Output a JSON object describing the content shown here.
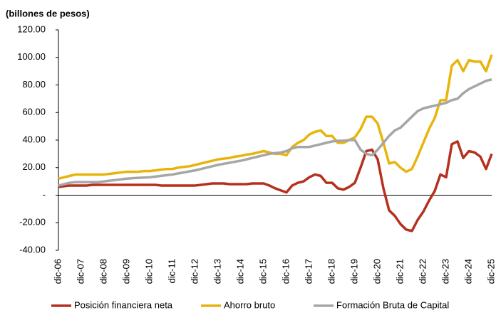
{
  "chart_data": {
    "type": "line",
    "title": "(billones de pesos)",
    "categories": [
      "dic-06",
      null,
      null,
      null,
      "dic-07",
      null,
      null,
      null,
      "dic-08",
      null,
      null,
      null,
      "dic-09",
      null,
      null,
      null,
      "dic-10",
      null,
      null,
      null,
      "dic-11",
      null,
      null,
      null,
      "dic-12",
      null,
      null,
      null,
      "dic-13",
      null,
      null,
      null,
      "dic-14",
      null,
      null,
      null,
      "dic-15",
      null,
      null,
      null,
      "dic-16",
      null,
      null,
      null,
      "dic-17",
      null,
      null,
      null,
      "dic-18",
      null,
      null,
      null,
      "dic-19",
      null,
      null,
      null,
      "dic-20",
      null,
      null,
      null,
      "dic-21",
      null,
      null,
      null,
      "dic-22",
      null,
      null,
      null,
      "dic-23",
      null,
      null,
      null,
      "dic-24",
      null,
      null,
      null,
      "dic-25"
    ],
    "series": [
      {
        "name": "Posición financiera neta",
        "color": "#b5301e",
        "values": [
          6,
          6.5,
          7,
          7,
          7,
          7,
          7.5,
          7.5,
          7.5,
          7.5,
          7.5,
          7.5,
          7.5,
          7.5,
          7.5,
          7.5,
          7.5,
          7.5,
          7,
          7,
          7,
          7,
          7,
          7,
          7,
          7.5,
          8,
          8.5,
          8.5,
          8.5,
          8,
          8,
          8,
          8,
          8.5,
          8.5,
          8.5,
          7,
          5,
          3.5,
          2,
          7,
          9,
          10,
          13,
          15,
          14,
          9,
          9,
          5,
          4,
          6,
          9,
          20,
          32,
          33,
          26,
          5,
          -11,
          -15,
          -21,
          -25,
          -26,
          -18,
          -12,
          -4,
          3,
          15,
          13,
          37,
          39,
          27,
          32,
          31,
          28,
          19,
          30
        ]
      },
      {
        "name": "Ahorro bruto",
        "color": "#e8b40c",
        "values": [
          12,
          13,
          14,
          15,
          15,
          15,
          15,
          15,
          15,
          15.5,
          16,
          16.5,
          17,
          17,
          17,
          17.5,
          17.5,
          18,
          18.5,
          19,
          19,
          20,
          20.5,
          21,
          22,
          23,
          24,
          25,
          26,
          26.5,
          27,
          28,
          28.5,
          29.5,
          30,
          31,
          32,
          31,
          30,
          30,
          29,
          35,
          38,
          40,
          44,
          46,
          47,
          43,
          43,
          38,
          38,
          40,
          42,
          48,
          57,
          57,
          52,
          38,
          23,
          24,
          20,
          17,
          19,
          28,
          38,
          48,
          56,
          69,
          69,
          94,
          98,
          90,
          98,
          97,
          97,
          90,
          102
        ]
      },
      {
        "name": "Formación Bruta de Capital",
        "color": "#a6a6a6",
        "values": [
          7,
          8,
          9,
          9.5,
          9.5,
          9.5,
          9.5,
          9.5,
          10,
          10.5,
          11,
          11.5,
          12,
          12.3,
          12.6,
          12.8,
          13,
          13.5,
          14,
          14.5,
          15,
          15.8,
          16.5,
          17.3,
          18,
          19,
          20,
          21,
          22,
          22.8,
          23.5,
          24.3,
          25,
          26,
          27,
          28,
          29,
          30,
          30.5,
          31,
          32,
          34,
          35,
          35,
          35,
          36,
          37,
          38,
          39,
          39.5,
          39.5,
          40,
          40,
          33,
          30,
          29,
          33,
          38,
          43,
          47,
          49,
          53,
          57,
          61,
          63,
          64,
          65,
          66,
          67,
          69,
          70,
          74,
          77,
          79,
          81,
          83,
          84
        ]
      }
    ],
    "ylim": [
      -40,
      120
    ],
    "yticks": [
      {
        "value": -40,
        "label": "-40.00"
      },
      {
        "value": -20,
        "label": "-20.00"
      },
      {
        "value": 0,
        "label": "-"
      },
      {
        "value": 20,
        "label": "20.00"
      },
      {
        "value": 40,
        "label": "40.00"
      },
      {
        "value": 60,
        "label": "60.00"
      },
      {
        "value": 80,
        "label": "80.00"
      },
      {
        "value": 100,
        "label": "100.00"
      },
      {
        "value": 120,
        "label": "120.00"
      }
    ],
    "grid": false
  }
}
